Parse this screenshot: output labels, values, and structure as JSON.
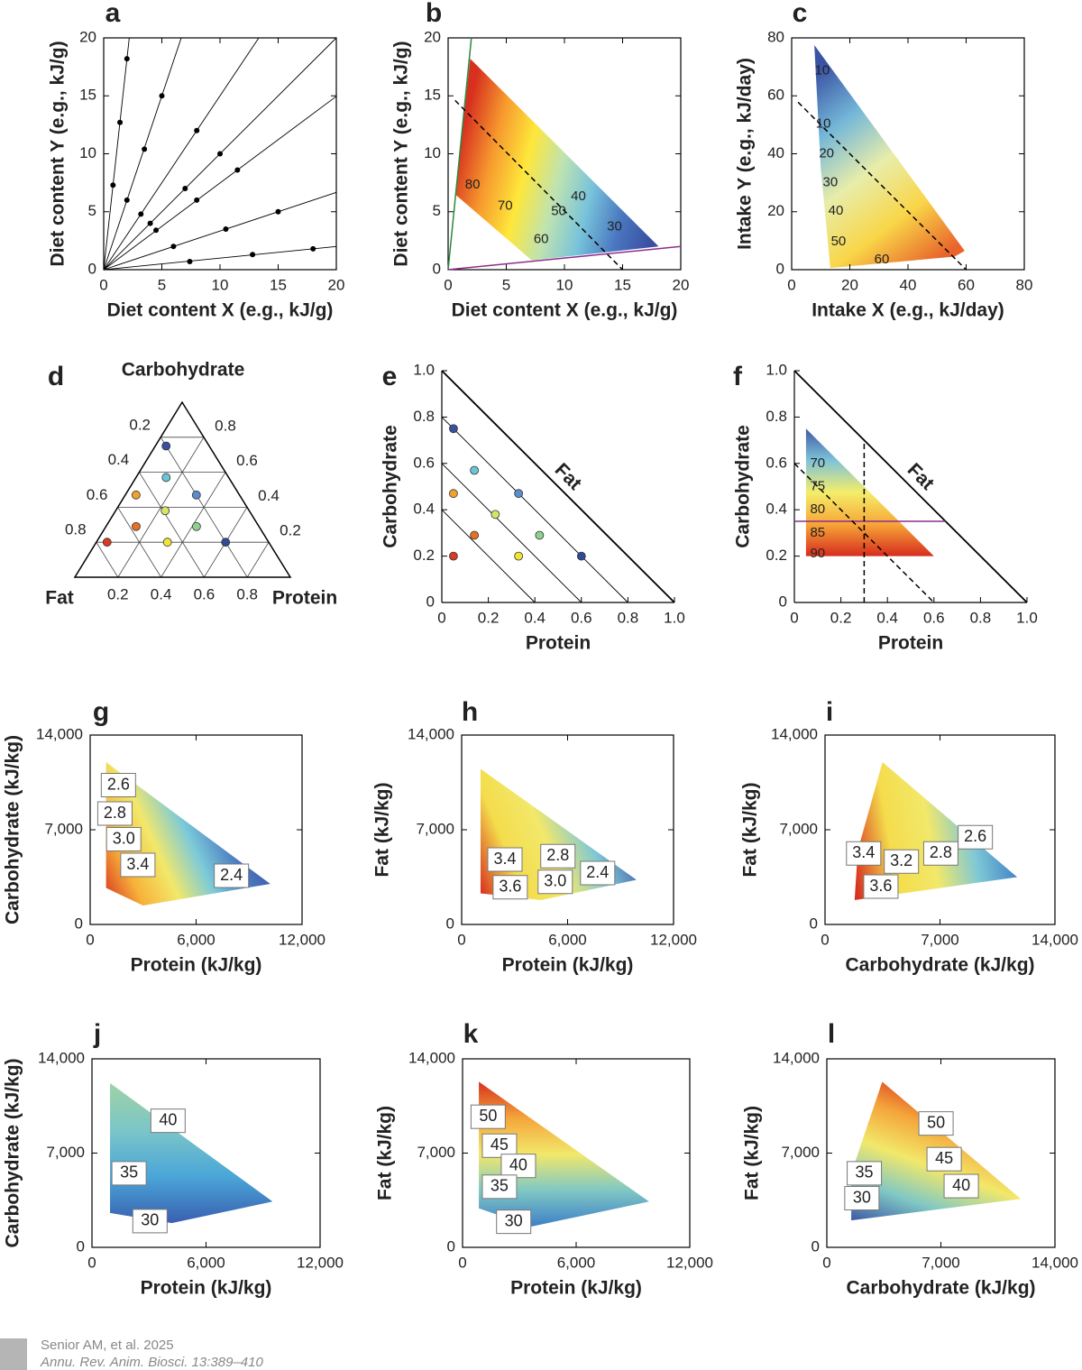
{
  "chart_data": [
    {
      "type": "scatter",
      "panel": "a",
      "x_label": "Diet content X (e.g., kJ/g)",
      "y_label": "Diet content Y (e.g., kJ/g)",
      "xlim": [
        0,
        20
      ],
      "ylim": [
        0,
        20
      ],
      "xticks": [
        0,
        5,
        10,
        15,
        20
      ],
      "yticks": [
        0,
        5,
        10,
        15,
        20
      ],
      "color": "#000000",
      "series": [
        {
          "x": [
            0.8,
            1.4,
            2
          ],
          "y": [
            7.3,
            12.7,
            18.2
          ]
        },
        {
          "x": [
            2,
            3.5,
            5
          ],
          "y": [
            6,
            10.4,
            15
          ]
        },
        {
          "x": [
            3.2,
            8
          ],
          "y": [
            4.8,
            12
          ]
        },
        {
          "x": [
            4,
            7,
            10
          ],
          "y": [
            4,
            7,
            10
          ]
        },
        {
          "x": [
            4.5,
            8,
            11.5
          ],
          "y": [
            3.4,
            6,
            8.6
          ]
        },
        {
          "x": [
            6,
            10.5,
            15
          ],
          "y": [
            2,
            3.5,
            5
          ]
        },
        {
          "x": [
            7.4,
            12.8,
            18
          ],
          "y": [
            0.7,
            1.3,
            1.8
          ]
        }
      ]
    },
    {
      "type": "contour",
      "panel": "b",
      "x_label": "Diet content X (e.g., kJ/g)",
      "y_label": "Diet content Y (e.g., kJ/g)",
      "xlim": [
        0,
        20
      ],
      "ylim": [
        0,
        20
      ],
      "xticks": [
        0,
        5,
        10,
        15,
        20
      ],
      "yticks": [
        0,
        5,
        10,
        15,
        20
      ],
      "region": {
        "x": [
          1.9,
          18.1,
          7.2,
          0.6
        ],
        "y": [
          18.2,
          2,
          0.8,
          6.5
        ]
      },
      "colors": [
        "#d7301f",
        "#f79a2e",
        "#fee73a",
        "#bfe3b0",
        "#78c3db",
        "#4a78c0",
        "#3a4fa0"
      ],
      "contours": [
        {
          "level": 80,
          "x": 2.1,
          "y": 7.3
        },
        {
          "level": 70,
          "x": 4.9,
          "y": 5.5
        },
        {
          "level": 60,
          "x": 8,
          "y": 2.6
        },
        {
          "level": 50,
          "x": 9.5,
          "y": 5
        },
        {
          "level": 40,
          "x": 11.2,
          "y": 6.3
        },
        {
          "level": 30,
          "x": 14.3,
          "y": 3.7
        }
      ],
      "lines": [
        {
          "color": "#2a8a3e",
          "x": [
            0,
            2
          ],
          "y": [
            0,
            20
          ]
        },
        {
          "color": "#8e2d8e",
          "x": [
            0,
            20
          ],
          "y": [
            0,
            2
          ]
        },
        {
          "color": "#000000",
          "dashed": true,
          "x": [
            0.6,
            15
          ],
          "y": [
            14.6,
            0
          ]
        }
      ]
    },
    {
      "type": "contour",
      "panel": "c",
      "x_label": "Intake X (e.g., kJ/day)",
      "y_label": "Intake Y (e.g., kJ/day)",
      "xlim": [
        0,
        80
      ],
      "ylim": [
        0,
        80
      ],
      "xticks": [
        0,
        20,
        40,
        60,
        80
      ],
      "yticks": [
        0,
        20,
        40,
        60,
        80
      ],
      "region": {
        "x": [
          7.8,
          59.5,
          56,
          13.3,
          10
        ],
        "y": [
          77.5,
          6.5,
          4.5,
          0.6,
          35
        ]
      },
      "colors": [
        "#3b53a4",
        "#74b7d8",
        "#e8edaa",
        "#f9d648",
        "#e8642b"
      ],
      "contours": [
        {
          "level": 10,
          "x": 10.5,
          "y": 68.6
        },
        {
          "level": 10,
          "x": 10.9,
          "y": 50.3
        },
        {
          "level": 20,
          "x": 12,
          "y": 40
        },
        {
          "level": 30,
          "x": 13.3,
          "y": 30
        },
        {
          "level": 40,
          "x": 15.2,
          "y": 20.2
        },
        {
          "level": 50,
          "x": 16.1,
          "y": 9.6
        },
        {
          "level": 60,
          "x": 31,
          "y": 3.4
        }
      ],
      "lines": [
        {
          "color": "#000000",
          "dashed": true,
          "x": [
            2.2,
            60
          ],
          "y": [
            57.8,
            0
          ]
        }
      ]
    },
    {
      "type": "ternary",
      "panel": "d",
      "top_label": "Carbohydrate",
      "left_label": "Fat",
      "right_label": "Protein",
      "left_ticks": [
        0.2,
        0.4,
        0.6,
        0.8
      ],
      "right_ticks": [
        0.8,
        0.6,
        0.4,
        0.2
      ],
      "bottom_ticks": [
        0.2,
        0.4,
        0.6,
        0.8
      ],
      "protein": [
        0.05,
        0.14,
        0.33,
        0.05,
        0.23,
        0.42,
        0.05,
        0.14,
        0.33,
        0.6
      ],
      "carbohydrate": [
        0.75,
        0.57,
        0.47,
        0.47,
        0.38,
        0.29,
        0.2,
        0.29,
        0.2,
        0.2
      ],
      "colors": [
        "#3b4fa0",
        "#6cc5d6",
        "#5b8ccd",
        "#f1a22b",
        "#d8e36a",
        "#8fd08f",
        "#d83a23",
        "#e86f24",
        "#f2e533",
        "#2f4a96"
      ]
    },
    {
      "type": "scatter",
      "panel": "e",
      "x_label": "Protein",
      "y_label": "Carbohydrate",
      "edge_label": "Fat",
      "xlim": [
        0,
        1
      ],
      "ylim": [
        0,
        1
      ],
      "xticks": [
        0,
        0.2,
        0.4,
        0.6,
        0.8,
        {
          "value": 1,
          "label": "1.0"
        }
      ],
      "yticks": [
        0,
        0.2,
        0.4,
        0.6,
        0.8,
        {
          "value": 1,
          "label": "1.0"
        }
      ],
      "x": [
        0.05,
        0.14,
        0.33,
        0.05,
        0.23,
        0.42,
        0.05,
        0.14,
        0.33,
        0.6
      ],
      "y": [
        0.75,
        0.57,
        0.47,
        0.47,
        0.38,
        0.29,
        0.2,
        0.29,
        0.2,
        0.2
      ],
      "colors": [
        "#3b4fa0",
        "#6cc5d6",
        "#5b8ccd",
        "#f1a22b",
        "#d8e36a",
        "#8fd08f",
        "#d83a23",
        "#e86f24",
        "#f2e533",
        "#2f4a96"
      ],
      "iso_lines": [
        0.8,
        0.6,
        0.4
      ]
    },
    {
      "type": "contour",
      "panel": "f",
      "x_label": "Protein",
      "y_label": "Carbohydrate",
      "edge_label": "Fat",
      "xlim": [
        0,
        1
      ],
      "ylim": [
        0,
        1
      ],
      "xticks": [
        0,
        0.2,
        0.4,
        0.6,
        0.8,
        {
          "value": 1,
          "label": "1.0"
        }
      ],
      "yticks": [
        0,
        0.2,
        0.4,
        0.6,
        0.8,
        {
          "value": 1,
          "label": "1.0"
        }
      ],
      "region": {
        "x": [
          0.05,
          0.6,
          0.05
        ],
        "y": [
          0.75,
          0.2,
          0.2
        ]
      },
      "colors": [
        "#3e5aa6",
        "#7fc3d8",
        "#f4ee6a",
        "#f7a637",
        "#d62c1f"
      ],
      "contours": [
        {
          "level": 70,
          "x": 0.1,
          "y": 0.6
        },
        {
          "level": 75,
          "x": 0.1,
          "y": 0.5
        },
        {
          "level": 80,
          "x": 0.1,
          "y": 0.4
        },
        {
          "level": 85,
          "x": 0.1,
          "y": 0.3
        },
        {
          "level": 90,
          "x": 0.1,
          "y": 0.21
        }
      ],
      "lines": [
        {
          "color": "#8e2d8e",
          "x": [
            0,
            0.65
          ],
          "y": [
            0.35,
            0.35
          ]
        },
        {
          "color": "#000000",
          "dashed": true,
          "x": [
            0.3,
            0.3
          ],
          "y": [
            0,
            0.7
          ]
        },
        {
          "color": "#000000",
          "dashed": true,
          "x": [
            0,
            0.6
          ],
          "y": [
            0.6,
            0
          ]
        }
      ]
    },
    {
      "type": "contour",
      "panel": "g",
      "x_label": "Protein (kJ/kg)",
      "y_label": "Carbohydrate (kJ/kg)",
      "label_boxes": true,
      "xlim": [
        0,
        12000
      ],
      "ylim": [
        0,
        14000
      ],
      "xticks": [
        0,
        {
          "value": 6000,
          "label": "6,000"
        },
        {
          "value": 12000,
          "label": "12,000"
        }
      ],
      "yticks": [
        0,
        {
          "value": 7000,
          "label": "7,000"
        },
        {
          "value": 14000,
          "label": "14,000"
        }
      ],
      "region": {
        "x": [
          900,
          10200,
          3000,
          900
        ],
        "y": [
          12000,
          3000,
          1400,
          2700
        ]
      },
      "colors": [
        "#d7301f",
        "#f7b23a",
        "#f2e86a",
        "#7ccad9",
        "#4a79c1",
        "#3b4ea3"
      ],
      "contours": [
        {
          "level": 2.6,
          "x": 1600,
          "y": 10300
        },
        {
          "level": 2.8,
          "x": 1400,
          "y": 8200
        },
        {
          "level": 3,
          "label": "3.0",
          "x": 1900,
          "y": 6300
        },
        {
          "level": 3.4,
          "x": 2700,
          "y": 4400
        },
        {
          "level": 2.4,
          "x": 8000,
          "y": 3600
        }
      ]
    },
    {
      "type": "contour",
      "panel": "h",
      "x_label": "Protein (kJ/kg)",
      "y_label": "Fat  (kJ/kg)",
      "label_boxes": true,
      "xlim": [
        0,
        12000
      ],
      "ylim": [
        0,
        14000
      ],
      "xticks": [
        0,
        {
          "value": 6000,
          "label": "6,000"
        },
        {
          "value": 12000,
          "label": "12,000"
        }
      ],
      "yticks": [
        0,
        {
          "value": 7000,
          "label": "7,000"
        },
        {
          "value": 14000,
          "label": "14,000"
        }
      ],
      "region": {
        "x": [
          1070,
          9900,
          4500,
          1070
        ],
        "y": [
          11500,
          3300,
          1800,
          2300
        ]
      },
      "colors": [
        "#d7301f",
        "#f4dc4c",
        "#f2e86a",
        "#7fc8d6",
        "#3e5aa6"
      ],
      "contours": [
        {
          "level": 3.4,
          "x": 2450,
          "y": 4800
        },
        {
          "level": 2.8,
          "x": 5450,
          "y": 5050
        },
        {
          "level": 3.6,
          "x": 2750,
          "y": 2750
        },
        {
          "level": 3,
          "label": "3.0",
          "x": 5300,
          "y": 3150
        },
        {
          "level": 2.4,
          "x": 7700,
          "y": 3800
        }
      ]
    },
    {
      "type": "contour",
      "panel": "i",
      "x_label": "Carbohydrate (kJ/kg)",
      "y_label": "Fat  (kJ/kg)",
      "label_boxes": true,
      "xlim": [
        0,
        14000
      ],
      "ylim": [
        0,
        14000
      ],
      "xticks": [
        0,
        {
          "value": 7000,
          "label": "7,000"
        },
        {
          "value": 14000,
          "label": "14,000"
        }
      ],
      "yticks": [
        0,
        {
          "value": 7000,
          "label": "7,000"
        },
        {
          "value": 14000,
          "label": "14,000"
        }
      ],
      "region": {
        "x": [
          3500,
          11700,
          1800,
          2000
        ],
        "y": [
          12000,
          3500,
          1800,
          5500
        ]
      },
      "colors": [
        "#d7301f",
        "#f4dc4c",
        "#f2e86a",
        "#7fc8d6",
        "#3e80c6"
      ],
      "contours": [
        {
          "level": 3.4,
          "x": 2350,
          "y": 5250
        },
        {
          "level": 3.2,
          "x": 4650,
          "y": 4650
        },
        {
          "level": 2.8,
          "x": 7050,
          "y": 5250
        },
        {
          "level": 2.6,
          "x": 9150,
          "y": 6450
        },
        {
          "level": 3.6,
          "x": 3400,
          "y": 2800
        }
      ]
    },
    {
      "type": "contour",
      "panel": "j",
      "x_label": "Protein (kJ/kg)",
      "y_label": "Carbohydrate (kJ/kg)",
      "label_boxes": true,
      "xlim": [
        0,
        12000
      ],
      "ylim": [
        0,
        14000
      ],
      "xticks": [
        0,
        {
          "value": 6000,
          "label": "6,000"
        },
        {
          "value": 12000,
          "label": "12,000"
        }
      ],
      "yticks": [
        0,
        {
          "value": 7000,
          "label": "7,000"
        },
        {
          "value": 14000,
          "label": "14,000"
        }
      ],
      "region": {
        "x": [
          950,
          9500,
          4200,
          950
        ],
        "y": [
          12200,
          3400,
          1800,
          2550
        ]
      },
      "colors": [
        "#9fd2a5",
        "#7cc6c8",
        "#4aa6d8",
        "#3a5fb0"
      ],
      "contours": [
        {
          "level": 40,
          "x": 4000,
          "y": 9400
        },
        {
          "level": 35,
          "x": 1950,
          "y": 5500
        },
        {
          "level": 30,
          "x": 3050,
          "y": 1950
        }
      ]
    },
    {
      "type": "contour",
      "panel": "k",
      "x_label": "Protein (kJ/kg)",
      "y_label": "Fat  (kJ/kg)",
      "label_boxes": true,
      "xlim": [
        0,
        12000
      ],
      "ylim": [
        0,
        14000
      ],
      "xticks": [
        0,
        {
          "value": 6000,
          "label": "6,000"
        },
        {
          "value": 12000,
          "label": "12,000"
        }
      ],
      "yticks": [
        0,
        {
          "value": 7000,
          "label": "7,000"
        },
        {
          "value": 14000,
          "label": "14,000"
        }
      ],
      "region": {
        "x": [
          860,
          9850,
          3650,
          860
        ],
        "y": [
          12300,
          3400,
          1550,
          2900
        ]
      },
      "colors": [
        "#d7301f",
        "#f4a53a",
        "#f2e86a",
        "#80c8c4",
        "#3e80c6"
      ],
      "contours": [
        {
          "level": 50,
          "x": 1350,
          "y": 9700
        },
        {
          "level": 45,
          "x": 1950,
          "y": 7550
        },
        {
          "level": 40,
          "x": 2950,
          "y": 6050
        },
        {
          "level": 35,
          "x": 1950,
          "y": 4500
        },
        {
          "level": 30,
          "x": 2700,
          "y": 1900
        }
      ]
    },
    {
      "type": "contour",
      "panel": "l",
      "x_label": "Carbohydrate (kJ/kg)",
      "y_label": "Fat  (kJ/kg)",
      "label_boxes": true,
      "xlim": [
        0,
        14000
      ],
      "ylim": [
        0,
        14000
      ],
      "xticks": [
        0,
        {
          "value": 7000,
          "label": "7,000"
        },
        {
          "value": 14000,
          "label": "14,000"
        }
      ],
      "yticks": [
        0,
        {
          "value": 7000,
          "label": "7,000"
        },
        {
          "value": 14000,
          "label": "14,000"
        }
      ],
      "region": {
        "x": [
          3400,
          11900,
          1500,
          1500
        ],
        "y": [
          12300,
          3600,
          2000,
          5500
        ]
      },
      "colors": [
        "#d7301f",
        "#f4a53a",
        "#f2e86a",
        "#80c8c4",
        "#3e5aa6"
      ],
      "contours": [
        {
          "level": 50,
          "x": 6700,
          "y": 9200
        },
        {
          "level": 45,
          "x": 7200,
          "y": 6550
        },
        {
          "level": 40,
          "x": 8250,
          "y": 4550
        },
        {
          "level": 35,
          "x": 2300,
          "y": 5500
        },
        {
          "level": 30,
          "x": 2150,
          "y": 3650
        }
      ]
    }
  ],
  "credit": {
    "citation": "Senior AM, et al. 2025",
    "journal": "Annu. Rev. Anim. Biosci. 13:389–410"
  }
}
